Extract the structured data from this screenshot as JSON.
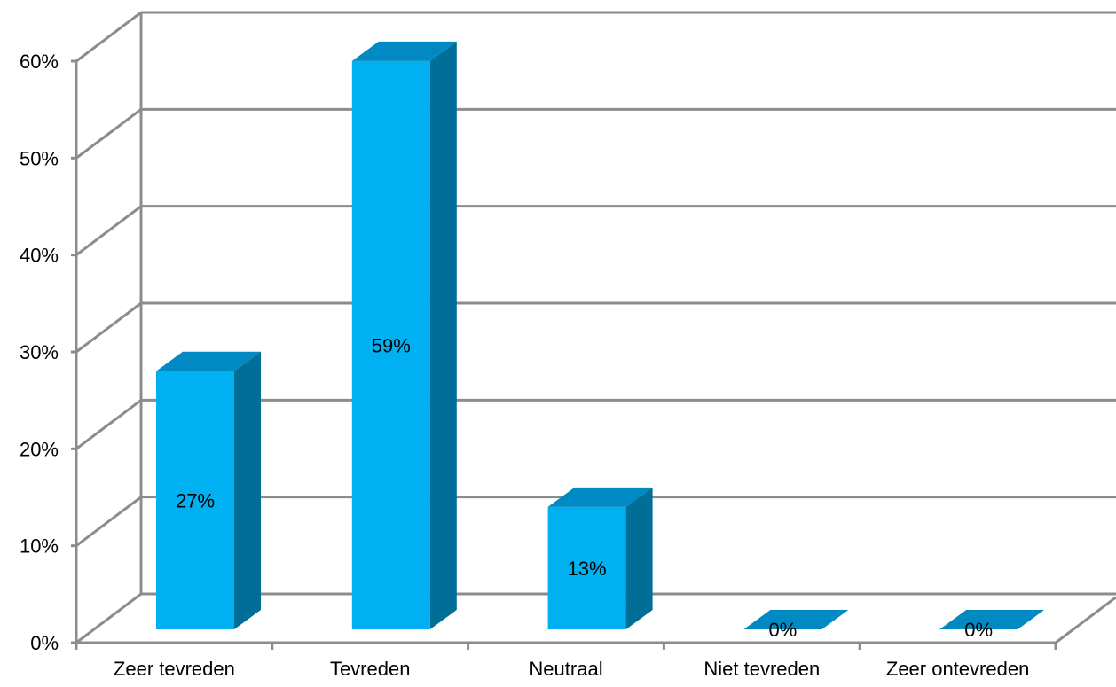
{
  "chart_data": {
    "type": "bar",
    "title": "",
    "xlabel": "",
    "ylabel": "",
    "categories": [
      "Zeer tevreden",
      "Tevreden",
      "Neutraal",
      "Niet tevreden",
      "Zeer ontevreden"
    ],
    "values": [
      27,
      59,
      13,
      0,
      0
    ],
    "data_labels": [
      "27%",
      "59%",
      "13%",
      "0%",
      "0%"
    ],
    "ylim": [
      0,
      60
    ],
    "yticks": [
      0,
      10,
      20,
      30,
      40,
      50,
      60
    ],
    "ytick_labels": [
      "0%",
      "10%",
      "20%",
      "30%",
      "40%",
      "50%",
      "60%"
    ],
    "grid": true,
    "style": "3d-column",
    "colors": {
      "bar_front": "#00B0F0",
      "bar_top": "#0089C3",
      "bar_side": "#006E96",
      "grid": "#8C8C8C"
    }
  }
}
